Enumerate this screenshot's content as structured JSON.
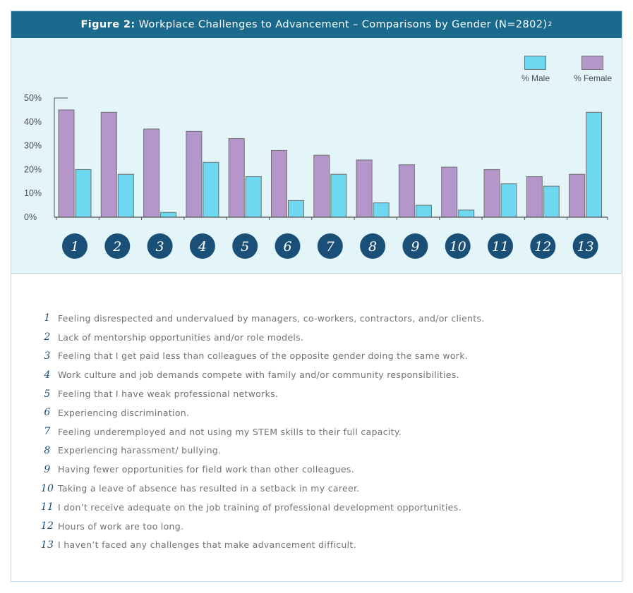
{
  "header": {
    "label": "Figure 2:",
    "title": "Workplace Challenges to Advancement – Comparisons by Gender (N=2802)",
    "footnote": "2"
  },
  "legend": {
    "male": "% Male",
    "female": "% Female"
  },
  "colors": {
    "male": "#6dd8ef",
    "female": "#b496cb",
    "badge": "#1a4f78",
    "header": "#1a6a8e",
    "panel": "#e4f5fa"
  },
  "chart_data": {
    "type": "bar",
    "categories": [
      "1",
      "2",
      "3",
      "4",
      "5",
      "6",
      "7",
      "8",
      "9",
      "10",
      "11",
      "12",
      "13"
    ],
    "series": [
      {
        "name": "% Female",
        "values": [
          45,
          44,
          37,
          36,
          33,
          28,
          26,
          24,
          22,
          21,
          20,
          17,
          18
        ]
      },
      {
        "name": "% Male",
        "values": [
          20,
          18,
          2,
          23,
          17,
          7,
          18,
          6,
          5,
          3,
          14,
          13,
          44
        ]
      }
    ],
    "yticks": [
      "0%",
      "10%",
      "20%",
      "30%",
      "40%",
      "50%"
    ],
    "ylim": [
      0,
      50
    ],
    "legend_position": "top-right",
    "grid": false
  },
  "items": [
    {
      "num": "1",
      "text": "Feeling disrespected and undervalued by managers, co-workers, contractors, and/or clients."
    },
    {
      "num": "2",
      "text": "Lack of mentorship opportunities and/or role models."
    },
    {
      "num": "3",
      "text": "Feeling that I get paid less than colleagues of the opposite gender doing the same work."
    },
    {
      "num": "4",
      "text": "Work culture and job demands compete with family and/or community responsibilities."
    },
    {
      "num": "5",
      "text": "Feeling that I have weak professional networks."
    },
    {
      "num": "6",
      "text": "Experiencing discrimination."
    },
    {
      "num": "7",
      "text": "Feeling underemployed and not using my STEM skills to their full capacity."
    },
    {
      "num": "8",
      "text": "Experiencing harassment/ bullying."
    },
    {
      "num": "9",
      "text": "Having fewer opportunities for field work than other colleagues."
    },
    {
      "num": "10",
      "text": "Taking a leave of absence has resulted in a setback in my career."
    },
    {
      "num": "11",
      "text": "I don’t receive adequate on the job training of professional development opportunities."
    },
    {
      "num": "12",
      "text": "Hours of work are too long."
    },
    {
      "num": "13",
      "text": "I haven’t faced any challenges that make advancement difficult."
    }
  ]
}
